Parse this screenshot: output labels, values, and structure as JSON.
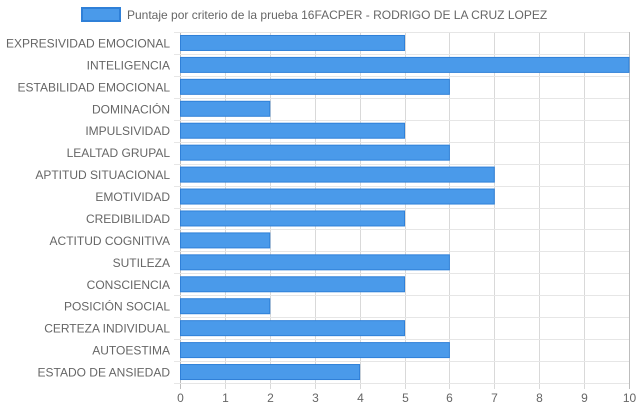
{
  "chart_data": {
    "type": "bar",
    "orientation": "horizontal",
    "categories": [
      "EXPRESIVIDAD EMOCIONAL",
      "INTELIGENCIA",
      "ESTABILIDAD EMOCIONAL",
      "DOMINACIÓN",
      "IMPULSIVIDAD",
      "LEALTAD GRUPAL",
      "APTITUD SITUACIONAL",
      "EMOTIVIDAD",
      "CREDIBILIDAD",
      "ACTITUD COGNITIVA",
      "SUTILEZA",
      "CONSCIENCIA",
      "POSICIÓN SOCIAL",
      "CERTEZA INDIVIDUAL",
      "AUTOESTIMA",
      "ESTADO DE ANSIEDAD"
    ],
    "series": [
      {
        "name": "Puntaje por criterio de la prueba 16FACPER - RODRIGO DE LA CRUZ LOPEZ",
        "values": [
          5,
          10,
          6,
          2,
          5,
          6,
          7,
          7,
          5,
          2,
          6,
          5,
          2,
          5,
          6,
          4
        ],
        "color": "#4a9aea",
        "border_color": "#2f80d8"
      }
    ],
    "xlim": [
      0,
      10
    ],
    "x_ticks": [
      "0",
      "1",
      "2",
      "3",
      "4",
      "5",
      "6",
      "7",
      "8",
      "9",
      "10"
    ],
    "grid": true,
    "legend_position": "top"
  }
}
